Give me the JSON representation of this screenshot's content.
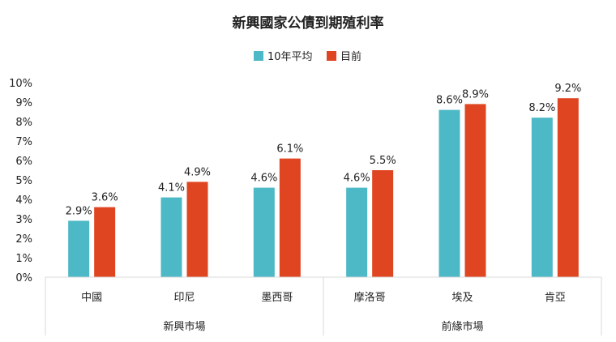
{
  "chart_data": {
    "type": "bar",
    "title": "新興國家公債到期殖利率",
    "categories": [
      "中國",
      "印尼",
      "墨西哥",
      "摩洛哥",
      "埃及",
      "肯亞"
    ],
    "groups": [
      {
        "label": "新興市場",
        "categories": [
          "中國",
          "印尼",
          "墨西哥"
        ]
      },
      {
        "label": "前緣市場",
        "categories": [
          "摩洛哥",
          "埃及",
          "肯亞"
        ]
      }
    ],
    "series": [
      {
        "name": "10年平均",
        "color": "#4db8c6",
        "values": [
          2.9,
          4.1,
          4.6,
          4.6,
          8.6,
          8.2
        ],
        "labels": [
          "2.9%",
          "4.1%",
          "4.6%",
          "4.6%",
          "8.6%",
          "8.2%"
        ]
      },
      {
        "name": "目前",
        "color": "#e04522",
        "values": [
          3.6,
          4.9,
          6.1,
          5.5,
          8.9,
          9.2
        ],
        "labels": [
          "3.6%",
          "4.9%",
          "6.1%",
          "5.5%",
          "8.9%",
          "9.2%"
        ]
      }
    ],
    "yticks": [
      "0%",
      "1%",
      "2%",
      "3%",
      "4%",
      "5%",
      "6%",
      "7%",
      "8%",
      "9%",
      "10%"
    ],
    "ylim": [
      0,
      10
    ],
    "grid": false,
    "legend_position": "top-center"
  }
}
